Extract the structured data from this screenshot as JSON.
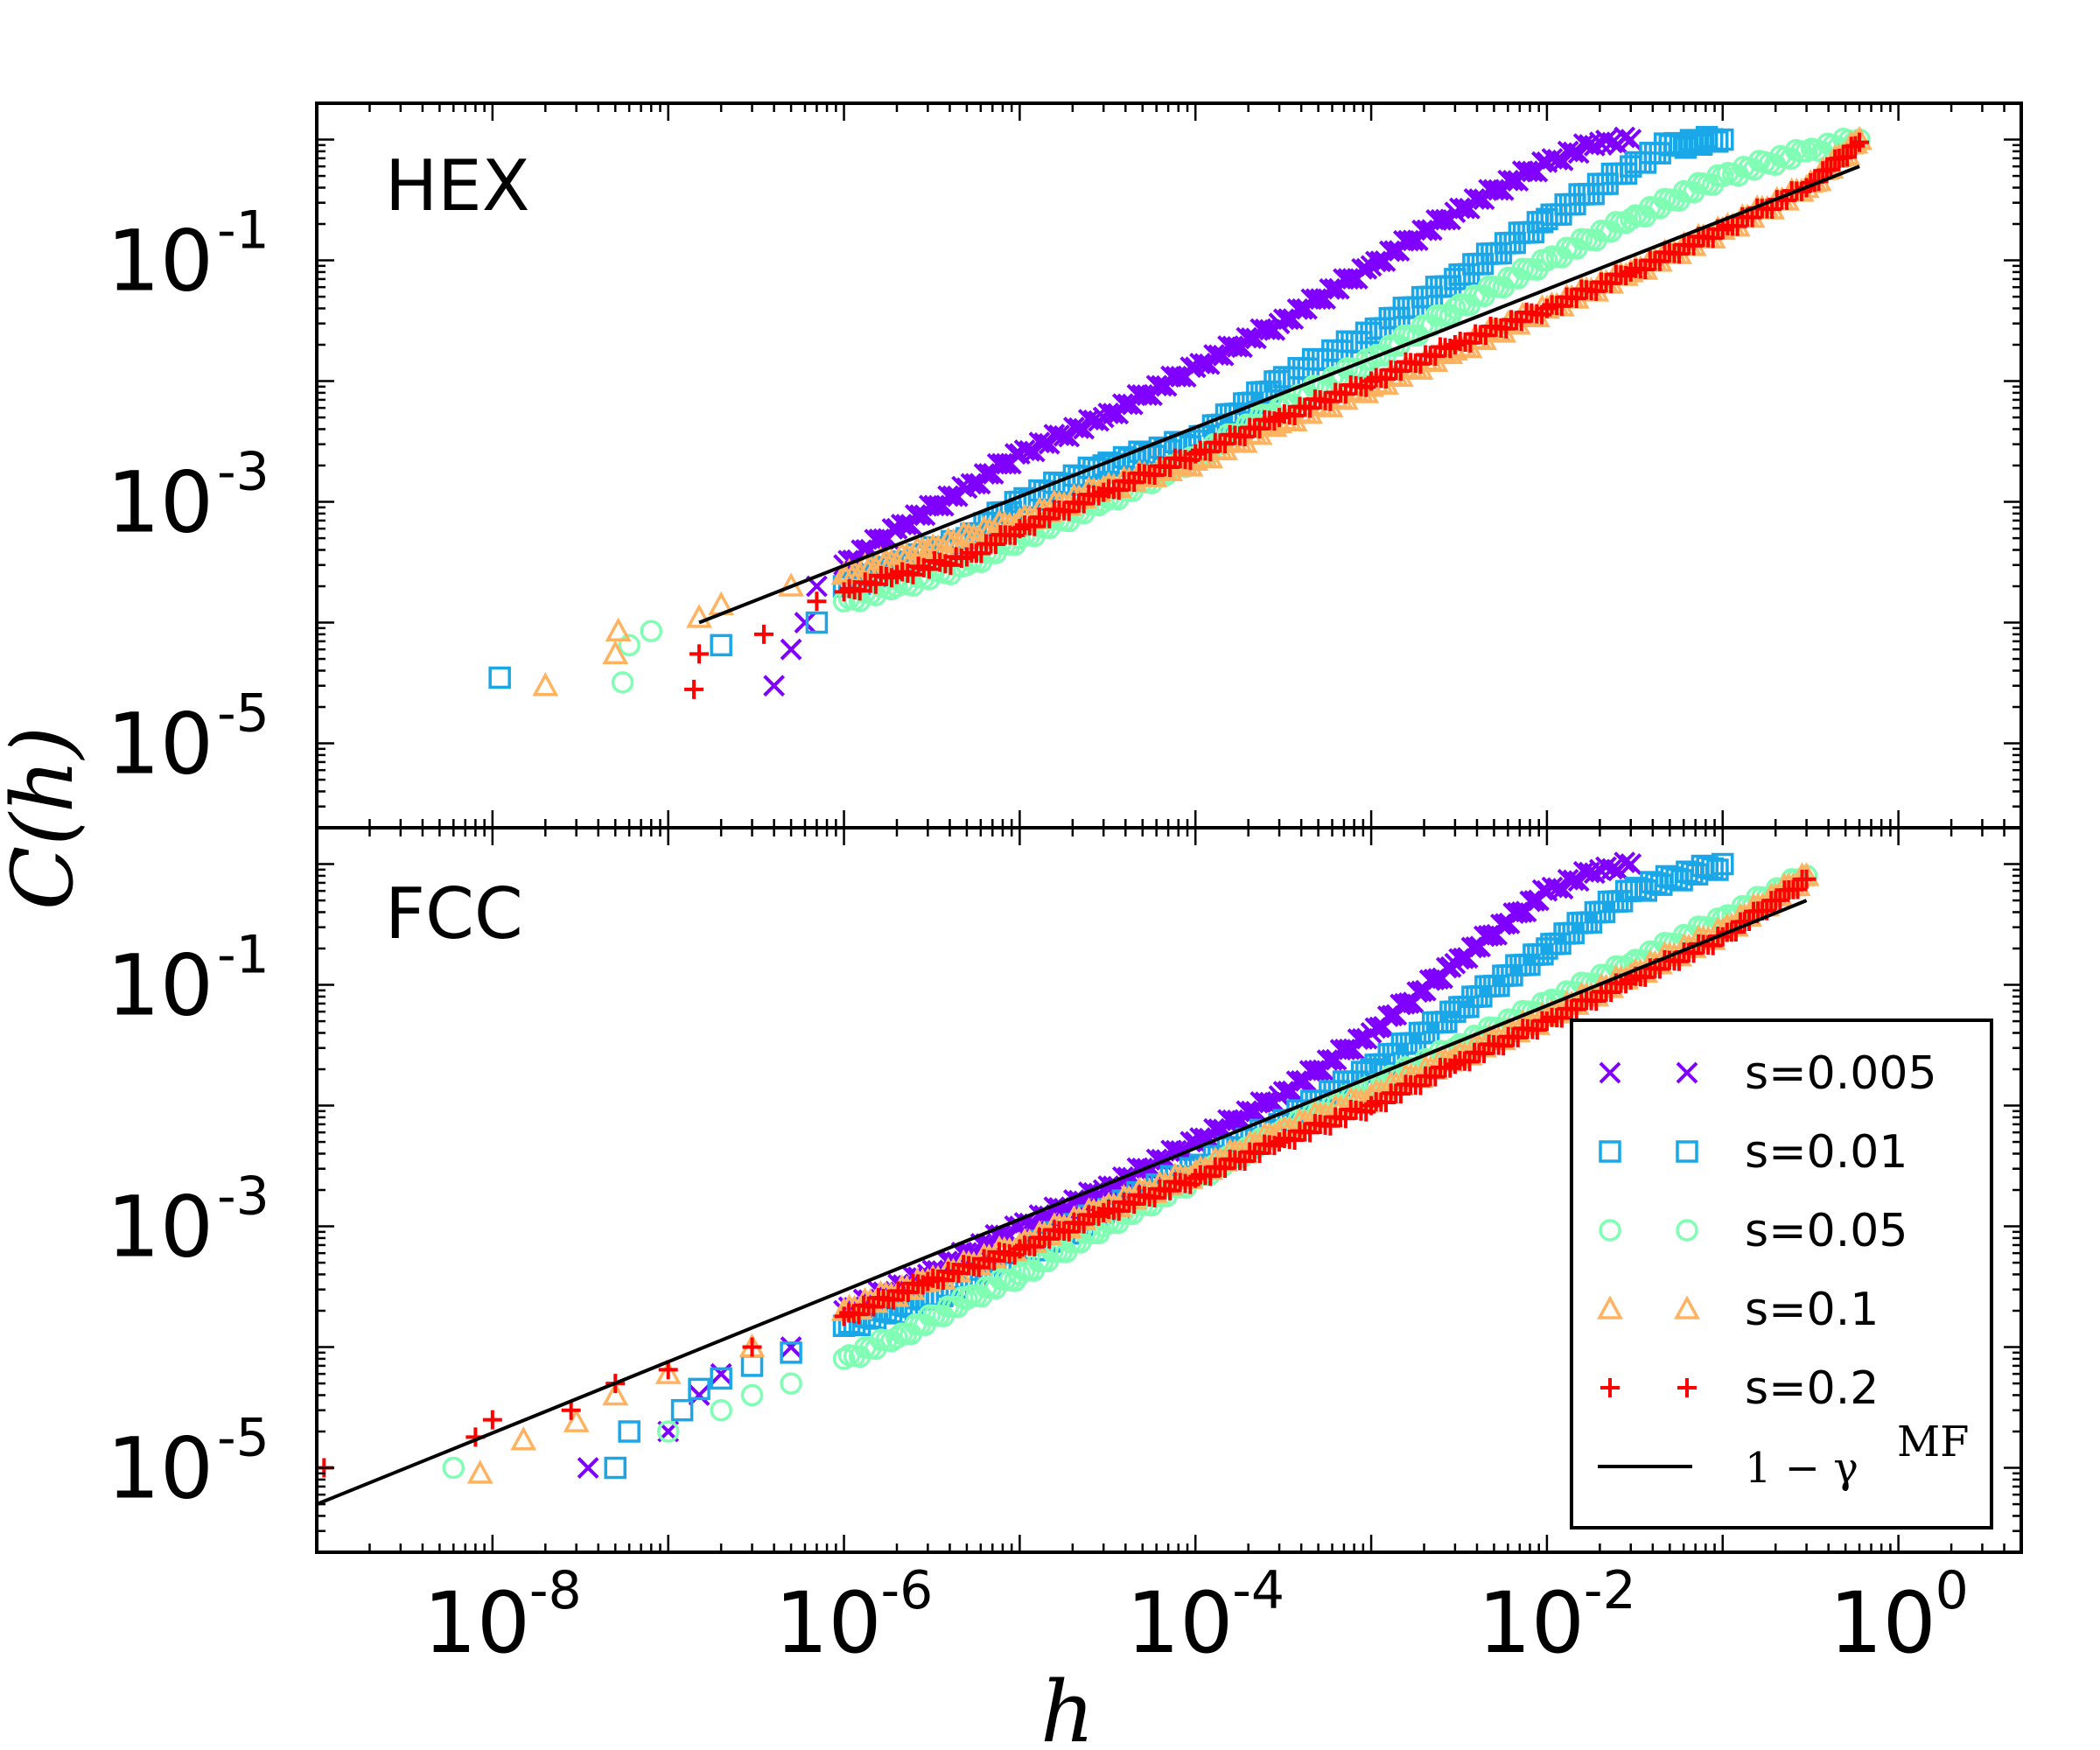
{
  "chart_data": {
    "type": "scatter",
    "x_scale": "log",
    "y_scale": "log",
    "xlim": [
      1e-09,
      5
    ],
    "ylim": [
      2e-06,
      2
    ],
    "xlabel": "h",
    "ylabel": "C(h)",
    "x_ticks": [
      {
        "value": 1e-08,
        "base": "10",
        "exp": "-8"
      },
      {
        "value": 1e-06,
        "base": "10",
        "exp": "-6"
      },
      {
        "value": 0.0001,
        "base": "10",
        "exp": "-4"
      },
      {
        "value": 0.01,
        "base": "10",
        "exp": "-2"
      },
      {
        "value": 1,
        "base": "10",
        "exp": "0"
      }
    ],
    "y_ticks": [
      {
        "value": 1e-05,
        "base": "10",
        "exp": "-5"
      },
      {
        "value": 0.001,
        "base": "10",
        "exp": "-3"
      },
      {
        "value": 0.1,
        "base": "10",
        "exp": "-1"
      }
    ],
    "series_styles": [
      {
        "name": "s=0.005",
        "marker": "x",
        "color": "#8000ff"
      },
      {
        "name": "s=0.01",
        "marker": "square",
        "color": "#1aa7e8"
      },
      {
        "name": "s=0.05",
        "marker": "circle",
        "color": "#80ffb4"
      },
      {
        "name": "s=0.1",
        "marker": "triangle",
        "color": "#ffb360"
      },
      {
        "name": "s=0.2",
        "marker": "plus",
        "color": "#ff0000"
      }
    ],
    "legend": {
      "position": "lower-right of bottom panel",
      "entries": [
        "s=0.005",
        "s=0.01",
        "s=0.05",
        "s=0.1",
        "s=0.2"
      ],
      "line_entry": {
        "text_base": "1 − γ",
        "text_sup": "MF",
        "color": "#000000"
      }
    },
    "panels": [
      {
        "label": "HEX",
        "reference_line": {
          "x": [
            1.5e-07,
            0.6
          ],
          "y": [
            0.0001,
            0.6
          ]
        },
        "series": [
          {
            "name": "s=0.005",
            "x": [
              4e-07,
              5e-07,
              6e-07,
              7e-07,
              1e-06,
              2e-06,
              5e-06,
              1e-05,
              3e-05,
              0.0001,
              0.0003,
              0.001,
              0.003,
              0.01,
              0.02,
              0.03
            ],
            "y": [
              3e-05,
              6e-05,
              0.0001,
              0.0002,
              0.0003,
              0.0006,
              0.0013,
              0.0025,
              0.005,
              0.013,
              0.03,
              0.09,
              0.25,
              0.65,
              0.95,
              1.0
            ]
          },
          {
            "name": "s=0.01",
            "x": [
              1.1e-08,
              2e-07,
              7e-07,
              1e-06,
              2e-06,
              5e-06,
              1e-05,
              3e-05,
              0.0001,
              0.0003,
              0.001,
              0.003,
              0.01,
              0.03,
              0.05,
              0.1
            ],
            "y": [
              3.5e-05,
              6.5e-05,
              0.0001,
              0.0002,
              0.0003,
              0.0005,
              0.001,
              0.002,
              0.0032,
              0.01,
              0.025,
              0.07,
              0.22,
              0.6,
              0.9,
              1.0
            ]
          },
          {
            "name": "s=0.05",
            "x": [
              5.5e-08,
              6e-08,
              8e-08,
              1e-06,
              2e-06,
              5e-06,
              1e-05,
              3e-05,
              0.0001,
              0.0003,
              0.001,
              0.003,
              0.01,
              0.03,
              0.1,
              0.3,
              0.6
            ],
            "y": [
              3.2e-05,
              6.5e-05,
              8.5e-05,
              0.00015,
              0.0002,
              0.0003,
              0.0005,
              0.001,
              0.0023,
              0.006,
              0.015,
              0.04,
              0.1,
              0.22,
              0.5,
              0.8,
              1.0
            ]
          },
          {
            "name": "s=0.1",
            "x": [
              2e-08,
              5e-08,
              5.2e-08,
              1.5e-07,
              2e-07,
              5e-07,
              1e-06,
              3e-06,
              1e-05,
              3e-05,
              0.0001,
              0.0003,
              0.001,
              0.003,
              0.01,
              0.03,
              0.1,
              0.3,
              0.6
            ],
            "y": [
              3e-05,
              5.5e-05,
              8.5e-05,
              0.00011,
              0.00014,
              0.0002,
              0.00025,
              0.0004,
              0.0007,
              0.0013,
              0.0022,
              0.0045,
              0.009,
              0.018,
              0.04,
              0.08,
              0.18,
              0.4,
              1.0
            ]
          },
          {
            "name": "s=0.2",
            "x": [
              1.4e-07,
              1.5e-07,
              3.5e-07,
              7e-07,
              1e-06,
              2e-06,
              5e-06,
              1e-05,
              3e-05,
              0.0001,
              0.0003,
              0.001,
              0.003,
              0.01,
              0.03,
              0.1,
              0.3,
              0.6
            ],
            "y": [
              2.8e-05,
              5.5e-05,
              8e-05,
              0.00015,
              0.00018,
              0.00025,
              0.00035,
              0.0006,
              0.0012,
              0.0025,
              0.005,
              0.01,
              0.02,
              0.04,
              0.08,
              0.18,
              0.4,
              0.95
            ]
          }
        ]
      },
      {
        "label": "FCC",
        "reference_line": {
          "x": [
            1e-09,
            0.3
          ],
          "y": [
            5e-06,
            0.5
          ]
        },
        "series": [
          {
            "name": "s=0.005",
            "x": [
              3.5e-08,
              1e-07,
              1.5e-07,
              2e-07,
              5e-07,
              1e-06,
              3e-06,
              1e-05,
              3e-05,
              0.0001,
              0.0003,
              0.001,
              0.003,
              0.01,
              0.02,
              0.03
            ],
            "y": [
              1e-05,
              2e-05,
              4e-05,
              6e-05,
              0.0001,
              0.0002,
              0.0004,
              0.001,
              0.002,
              0.005,
              0.012,
              0.04,
              0.15,
              0.6,
              0.9,
              1.0
            ]
          },
          {
            "name": "s=0.01",
            "x": [
              5e-08,
              6e-08,
              1.2e-07,
              1.5e-07,
              2e-07,
              3e-07,
              5e-07,
              1e-06,
              3e-06,
              1e-05,
              3e-05,
              0.0001,
              0.0003,
              0.001,
              0.003,
              0.01,
              0.03,
              0.1
            ],
            "y": [
              1e-05,
              2e-05,
              3e-05,
              4.5e-05,
              5.5e-05,
              7e-05,
              9e-05,
              0.00015,
              0.00025,
              0.0006,
              0.0013,
              0.003,
              0.007,
              0.02,
              0.06,
              0.2,
              0.6,
              1.0
            ]
          },
          {
            "name": "s=0.05",
            "x": [
              6e-09,
              1e-07,
              2e-07,
              3e-07,
              5e-07,
              1e-06,
              2e-06,
              5e-06,
              1e-05,
              3e-05,
              0.0001,
              0.0003,
              0.001,
              0.003,
              0.01,
              0.03,
              0.1,
              0.3
            ],
            "y": [
              1e-05,
              2e-05,
              3e-05,
              4e-05,
              5e-05,
              8e-05,
              0.00012,
              0.00025,
              0.0004,
              0.001,
              0.0025,
              0.006,
              0.014,
              0.03,
              0.07,
              0.15,
              0.35,
              0.8
            ]
          },
          {
            "name": "s=0.1",
            "x": [
              8.5e-09,
              1.5e-08,
              3e-08,
              5e-08,
              1e-07,
              3e-07,
              1e-06,
              3e-06,
              1e-05,
              3e-05,
              0.0001,
              0.0003,
              0.001,
              0.003,
              0.01,
              0.03,
              0.1,
              0.3
            ],
            "y": [
              9e-06,
              1.7e-05,
              2.4e-05,
              4e-05,
              6e-05,
              0.0001,
              0.0002,
              0.00035,
              0.0007,
              0.0014,
              0.0028,
              0.006,
              0.012,
              0.025,
              0.055,
              0.12,
              0.28,
              0.8
            ]
          },
          {
            "name": "s=0.2",
            "x": [
              1.1e-09,
              8e-09,
              1e-08,
              2.8e-08,
              5e-08,
              1e-07,
              3e-07,
              1e-06,
              3e-06,
              1e-05,
              3e-05,
              0.0001,
              0.0003,
              0.001,
              0.003,
              0.01,
              0.03,
              0.1,
              0.3
            ],
            "y": [
              1e-05,
              1.8e-05,
              2.5e-05,
              3e-05,
              5e-05,
              6.5e-05,
              0.0001,
              0.00018,
              0.00035,
              0.00065,
              0.0013,
              0.0025,
              0.005,
              0.01,
              0.022,
              0.05,
              0.11,
              0.25,
              0.75
            ]
          }
        ]
      }
    ]
  }
}
